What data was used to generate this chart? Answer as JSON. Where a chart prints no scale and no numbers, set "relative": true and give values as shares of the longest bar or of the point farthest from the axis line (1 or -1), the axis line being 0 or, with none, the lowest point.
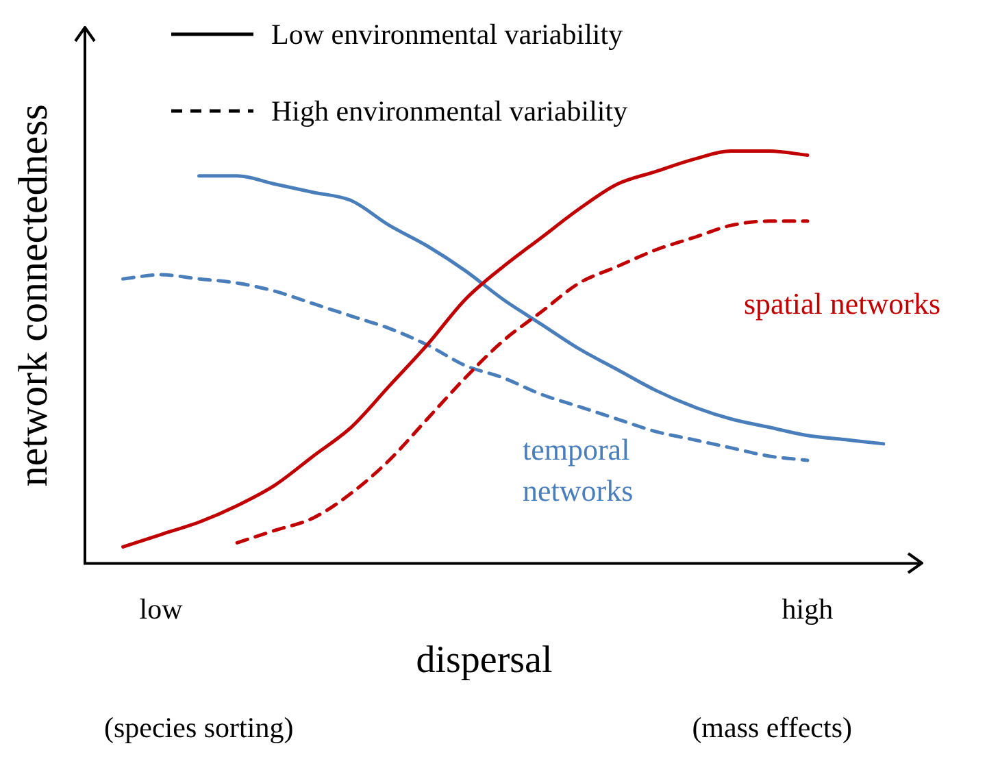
{
  "chart_data": {
    "type": "line",
    "relative": true,
    "xlabel": "dispersal",
    "ylabel": "network connectedness",
    "grid": false,
    "marker": "none",
    "categories": [
      null,
      null,
      "low",
      null,
      null,
      null,
      null,
      null,
      null,
      null,
      null,
      null,
      null,
      null,
      null,
      null,
      null,
      null,
      null,
      "high",
      null,
      null
    ],
    "series": [
      {
        "color": "#c00000",
        "line_style": "solid",
        "values": [
          null,
          0.04,
          0.07,
          0.1,
          0.14,
          0.19,
          0.26,
          0.33,
          0.43,
          0.53,
          0.64,
          0.72,
          0.79,
          0.86,
          0.92,
          0.95,
          0.98,
          1,
          1,
          0.99,
          null,
          null
        ]
      },
      {
        "color": "#c00000",
        "line_style": "dashed",
        "values": [
          null,
          null,
          null,
          null,
          0.05,
          0.08,
          0.11,
          0.17,
          0.25,
          0.35,
          0.45,
          0.54,
          0.61,
          0.68,
          0.72,
          0.76,
          0.79,
          0.82,
          0.83,
          0.83,
          null,
          null
        ]
      },
      {
        "color": "#4a7ebb",
        "line_style": "solid",
        "values": [
          null,
          null,
          null,
          0.94,
          0.94,
          0.92,
          0.9,
          0.88,
          0.82,
          0.77,
          0.71,
          0.64,
          0.58,
          0.52,
          0.47,
          0.42,
          0.38,
          0.35,
          0.33,
          0.31,
          0.3,
          0.29
        ]
      },
      {
        "color": "#4a7ebb",
        "line_style": "dashed",
        "values": [
          null,
          0.69,
          0.7,
          0.69,
          0.68,
          0.66,
          0.63,
          0.6,
          0.57,
          0.53,
          0.48,
          0.45,
          0.41,
          0.38,
          0.35,
          0.32,
          0.3,
          0.28,
          0.26,
          0.25,
          null,
          null
        ]
      }
    ],
    "annotations": [
      "Low environmental variability",
      "High environmental variability",
      "spatial networks",
      "temporal networks",
      "(species sorting)",
      "(mass effects)"
    ]
  }
}
